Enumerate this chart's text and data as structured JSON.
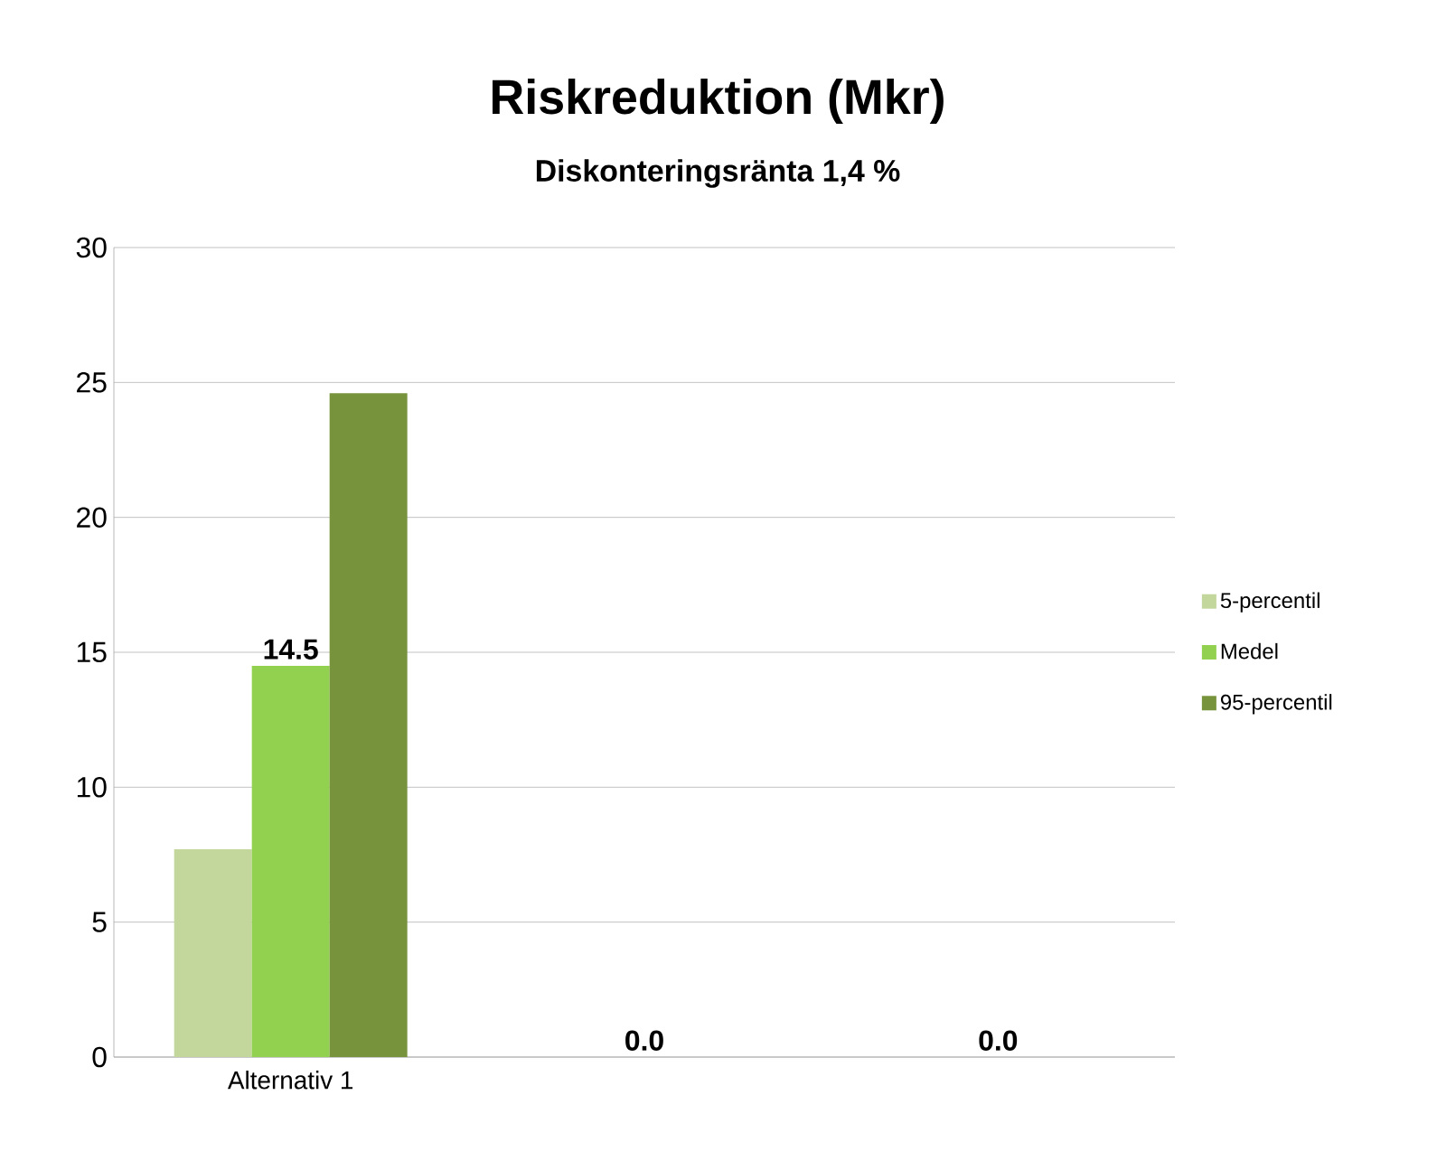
{
  "chart_data": {
    "type": "bar",
    "title": "Riskreduktion (Mkr)",
    "subtitle": "Diskonteringsränta 1,4 %",
    "categories": [
      "Alternativ 1",
      null,
      null
    ],
    "series": [
      {
        "name": "5-percentil",
        "color": "#c3d69b",
        "values": [
          7.7,
          0,
          0
        ]
      },
      {
        "name": "Medel",
        "color": "#92d050",
        "values": [
          14.5,
          0,
          0
        ],
        "value_labels": [
          "14.5",
          "0.0",
          "0.0"
        ]
      },
      {
        "name": "95-percentil",
        "color": "#77933c",
        "values": [
          24.6,
          0,
          0
        ]
      }
    ],
    "ylim": [
      0,
      30
    ],
    "yticks": [
      0,
      5,
      10,
      15,
      20,
      25,
      30
    ],
    "grid": "y",
    "legend": "right"
  }
}
